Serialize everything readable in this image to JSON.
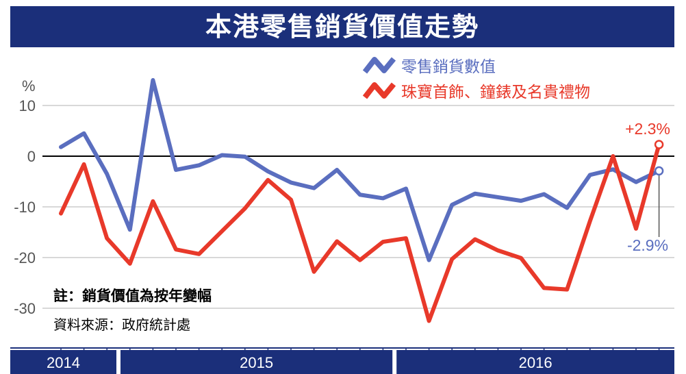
{
  "title": "本港零售銷貨價值走勢",
  "note": "註：銷貨價值為按年變幅",
  "source": "資料來源：政府統計處",
  "chart_data": {
    "type": "line",
    "y_unit_label": "%",
    "ylim": [
      -33,
      15
    ],
    "y_ticks": [
      10,
      0,
      -10,
      -20,
      -30
    ],
    "y_tick_labels": [
      "10",
      "0",
      "-10",
      "-20",
      "-30"
    ],
    "grid": true,
    "legend_position": "top-right",
    "year_segments": [
      {
        "label": "2014",
        "start": 0,
        "end": 2
      },
      {
        "label": "2015",
        "start": 3,
        "end": 14
      },
      {
        "label": "2016",
        "start": 15,
        "end": 26
      }
    ],
    "series": [
      {
        "name": "零售銷貨數值",
        "color": "#5a6ebf",
        "values": [
          1.8,
          4.5,
          -3.5,
          -14.5,
          15.0,
          -2.7,
          -1.8,
          0.2,
          -0.1,
          -3.0,
          -5.2,
          -6.3,
          -2.7,
          -7.6,
          -8.3,
          -6.4,
          -20.5,
          -9.6,
          -7.4,
          -8.1,
          -8.8,
          -7.5,
          -10.2,
          -3.7,
          -2.6,
          -5.1,
          -2.9
        ]
      },
      {
        "name": "珠寶首飾、鐘錶及名貴禮物",
        "color": "#e8392a",
        "values": [
          -11.3,
          -1.6,
          -16.2,
          -21.2,
          -8.9,
          -18.4,
          -19.3,
          -14.8,
          -10.3,
          -4.7,
          -8.6,
          -22.8,
          -16.8,
          -20.5,
          -16.9,
          -16.2,
          -32.5,
          -20.3,
          -16.4,
          -18.6,
          -20.1,
          -26.0,
          -26.3,
          -12.8,
          0.0,
          -14.3,
          2.3
        ]
      }
    ],
    "annotations": [
      {
        "series": 1,
        "index": 26,
        "text": "+2.3%"
      },
      {
        "series": 0,
        "index": 26,
        "text": "-2.9%"
      }
    ]
  }
}
